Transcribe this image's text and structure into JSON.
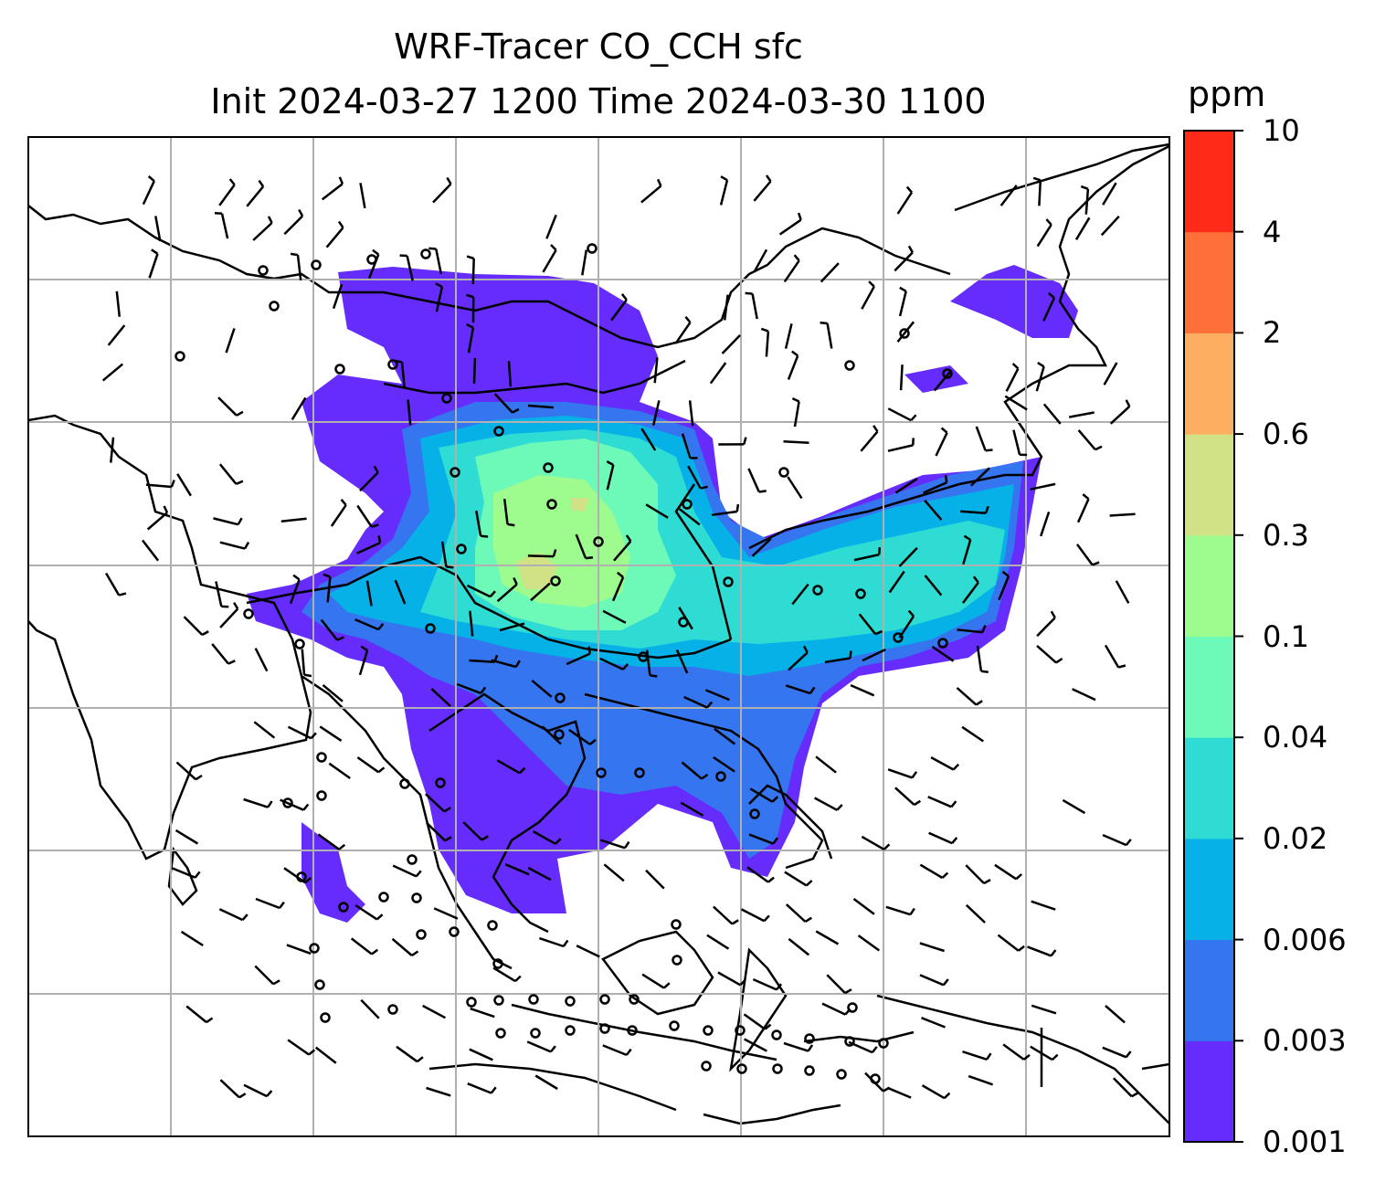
{
  "title": {
    "line1": "WRF-Tracer CO_CCH sfc",
    "line2": "Init 2024-03-27 1200 Time 2024-03-30 1100"
  },
  "colorbar": {
    "unit": "ppm",
    "ticks": [
      "0.001",
      "0.003",
      "0.006",
      "0.02",
      "0.04",
      "0.1",
      "0.3",
      "0.6",
      "2",
      "4",
      "10"
    ],
    "colors": [
      "#652cfb",
      "#3575f0",
      "#06b1e8",
      "#2fdcd3",
      "#6dfab9",
      "#9efb8e",
      "#d1e185",
      "#fdae61",
      "#fe6f3a",
      "#ff2a17"
    ]
  },
  "map": {
    "grid": true,
    "colors": {
      "coastline": "#000000",
      "grid": "#b0b0b0",
      "barb": "#000000"
    }
  }
}
